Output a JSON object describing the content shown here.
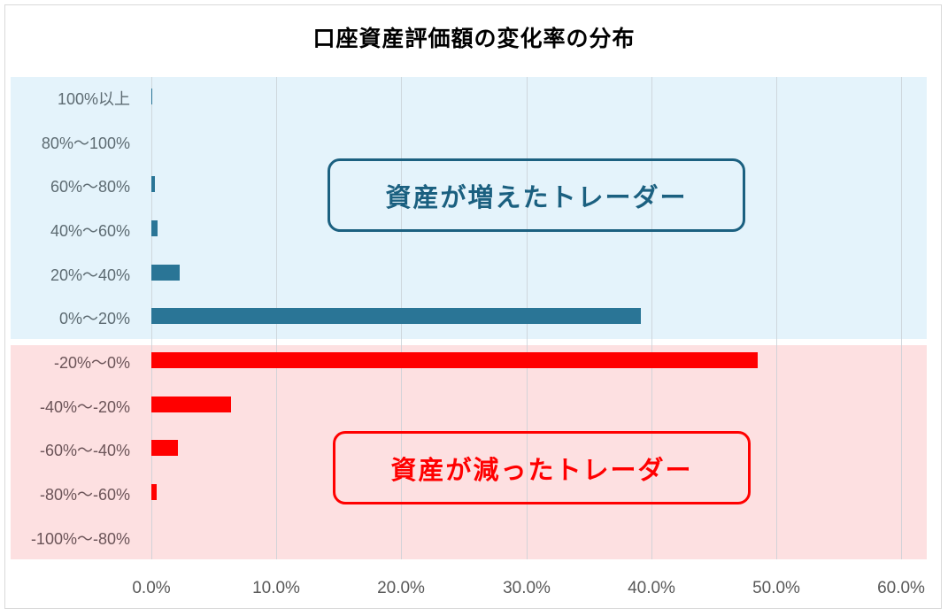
{
  "chart_data": {
    "type": "bar",
    "orientation": "horizontal",
    "title": "口座資産評価額の変化率の分布",
    "xlabel": "",
    "ylabel": "",
    "xlim": [
      0,
      60
    ],
    "x_ticks": [
      "0.0%",
      "10.0%",
      "20.0%",
      "30.0%",
      "40.0%",
      "50.0%",
      "60.0%"
    ],
    "grid": true,
    "legend": null,
    "categories": [
      "100%以上",
      "80%～100%",
      "60%～80%",
      "40%～60%",
      "20%～40%",
      "0%～20%",
      "-20%～0%",
      "-40%～-20%",
      "-60%～-40%",
      "-80%～-60%",
      "-100%～-80%"
    ],
    "values": [
      0.1,
      0.0,
      0.3,
      0.5,
      2.3,
      39.2,
      48.5,
      6.4,
      2.1,
      0.4,
      0.0
    ],
    "bar_colors": [
      "#2a7596",
      "#2a7596",
      "#2a7596",
      "#2a7596",
      "#2a7596",
      "#2a7596",
      "#ff0000",
      "#ff0000",
      "#ff0000",
      "#ff0000",
      "#ff0000"
    ],
    "annotations": [
      {
        "text": "資産が増えたトレーダー",
        "color": "#1b6080",
        "region": "gain",
        "background": "#e4f3fb"
      },
      {
        "text": "資産が減ったトレーダー",
        "color": "#ff0000",
        "region": "loss",
        "background": "#fde0e1"
      }
    ]
  },
  "title": "口座資産評価額の変化率の分布",
  "callouts": {
    "gain": "資産が増えたトレーダー",
    "loss": "資産が減ったトレーダー"
  },
  "colors": {
    "gain_bar": "#2a7596",
    "loss_bar": "#ff0000",
    "gain_band": "#e4f3fb",
    "loss_band": "#fde0e1"
  }
}
